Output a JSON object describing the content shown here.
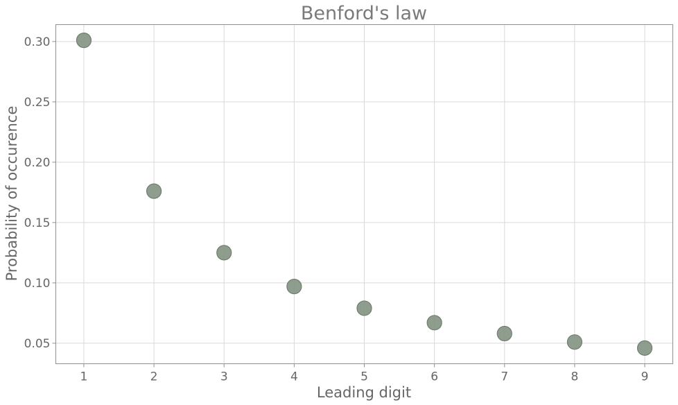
{
  "chart_data": {
    "type": "scatter",
    "title": "Benford's law",
    "xlabel": "Leading digit",
    "ylabel": "Probability of occurence",
    "x": [
      1,
      2,
      3,
      4,
      5,
      6,
      7,
      8,
      9
    ],
    "y": [
      0.301,
      0.176,
      0.125,
      0.097,
      0.079,
      0.067,
      0.058,
      0.051,
      0.046
    ],
    "xlim": [
      0.6,
      9.4
    ],
    "ylim": [
      0.033,
      0.314
    ],
    "x_ticks": [
      1,
      2,
      3,
      4,
      5,
      6,
      7,
      8,
      9
    ],
    "x_tick_labels": [
      "1",
      "2",
      "3",
      "4",
      "5",
      "6",
      "7",
      "8",
      "9"
    ],
    "y_ticks": [
      0.05,
      0.1,
      0.15,
      0.2,
      0.25,
      0.3
    ],
    "y_tick_labels": [
      "0.05",
      "0.10",
      "0.15",
      "0.20",
      "0.25",
      "0.30"
    ],
    "grid": true,
    "marker_color": "#839282"
  }
}
